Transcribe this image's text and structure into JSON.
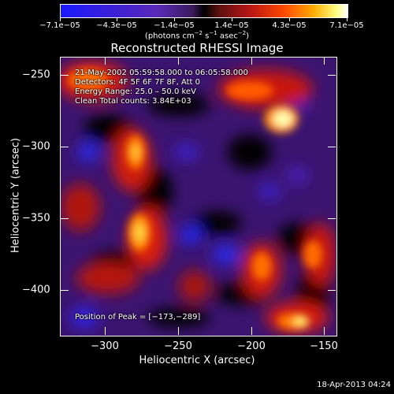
{
  "colorbar": {
    "tick_labels": [
      "−7.1e−05",
      "−4.3e−05",
      "−1.4e−05",
      "1.4e−05",
      "4.3e−05",
      "7.1e−05"
    ],
    "unit_prefix": "(photons cm",
    "unit_exp1": "−2",
    "unit_mid": " s",
    "unit_exp2": "−1",
    "unit_mid2": " asec",
    "unit_exp3": "−2",
    "unit_suffix": ")"
  },
  "title": "Reconstructed RHESSI Image",
  "annotations": {
    "time_range": "21-May-2002 05:59:58.000 to 06:05:58.000",
    "detectors": "Detectors: 4F 5F 6F 7F 8F, Att 0",
    "energy": "Energy Range: 25.0 – 50.0 keV",
    "clean": "Clean     Total counts: 3.84E+03",
    "peak": "Position of Peak = [−173,−289]"
  },
  "axes": {
    "x_label": "Heliocentric X (arcsec)",
    "y_label": "Heliocentric Y (arcsec)",
    "x_ticks": [
      "−300",
      "−250",
      "−200",
      "−150"
    ],
    "y_ticks": [
      "−250",
      "−300",
      "−350",
      "−400"
    ]
  },
  "timestamp": "18-Apr-2013 04:24",
  "colors": {
    "negative_min": "#1a1aff",
    "zero": "#000000",
    "positive_mid": "#ff4a00",
    "positive_max": "#ffffff"
  }
}
